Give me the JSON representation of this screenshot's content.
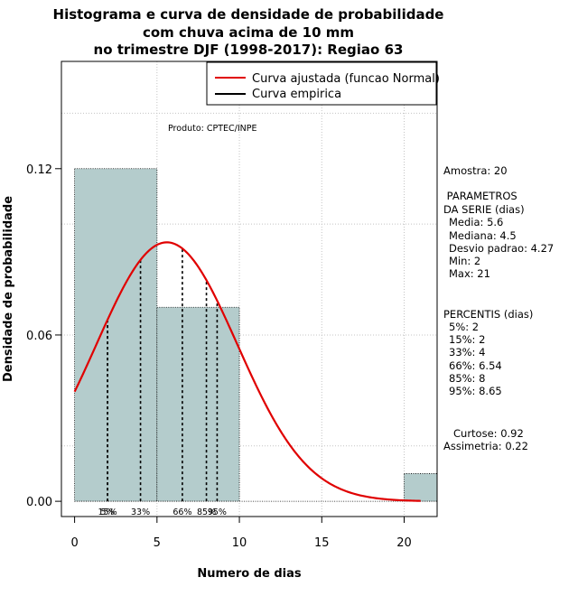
{
  "chart_data": {
    "type": "histogram",
    "title_lines": [
      "Histograma e curva de densidade de probabilidade",
      "com chuva acima de 10 mm",
      "no trimestre DJF (1998-2017): Regiao 63"
    ],
    "xlabel": "Numero de dias",
    "ylabel": "Densidade de probabilidade",
    "xlim": [
      -0.8,
      22
    ],
    "ylim": [
      -0.0055,
      0.1587
    ],
    "x_ticks": [
      "0",
      "5",
      "10",
      "15",
      "20"
    ],
    "x_tick_values": [
      0,
      5,
      10,
      15,
      20
    ],
    "y_ticks": [
      "0.00",
      "0.06",
      "0.12"
    ],
    "y_tick_values": [
      0.0,
      0.06,
      0.12
    ],
    "bins": [
      {
        "start": 0,
        "end": 5,
        "density": 0.12
      },
      {
        "start": 5,
        "end": 10,
        "density": 0.07
      },
      {
        "start": 20,
        "end": 22,
        "density": 0.01
      }
    ],
    "normal_curve": {
      "mean": 5.6,
      "sd": 4.27,
      "x_from": 0,
      "x_to": 21
    },
    "percentile_lines": [
      {
        "label": "5%",
        "value": 2
      },
      {
        "label": "15%",
        "value": 2
      },
      {
        "label": "33%",
        "value": 4
      },
      {
        "label": "66%",
        "value": 6.54
      },
      {
        "label": "85%",
        "value": 8
      },
      {
        "label": "95%",
        "value": 8.65
      }
    ],
    "legend": {
      "position": "top-right",
      "entries": [
        {
          "label": "Curva ajustada (funcao Normal)",
          "color": "#e00000"
        },
        {
          "label": "Curva empirica",
          "color": "#000000"
        }
      ]
    },
    "product_label": "Produto: CPTEC/INPE",
    "grid": true,
    "bar_color": "#b4cccc",
    "curve_color": "#e00000"
  },
  "stats": {
    "amostra": "Amostra: 20",
    "param_header1": " PARAMETROS",
    "param_header2": "DA SERIE (dias)",
    "media": "Media: 5.6",
    "mediana": "Mediana: 4.5",
    "desvio": "Desvio padrao: 4.27",
    "min": "Min: 2",
    "max": "Max: 21",
    "percentis_header": "PERCENTIS (dias)",
    "p5": "5%: 2",
    "p15": "15%: 2",
    "p33": "33%: 4",
    "p66": "66%: 6.54",
    "p85": "85%: 8",
    "p95": "95%: 8.65",
    "curtose": "Curtose: 0.92",
    "assimetria": "Assimetria: 0.22"
  }
}
